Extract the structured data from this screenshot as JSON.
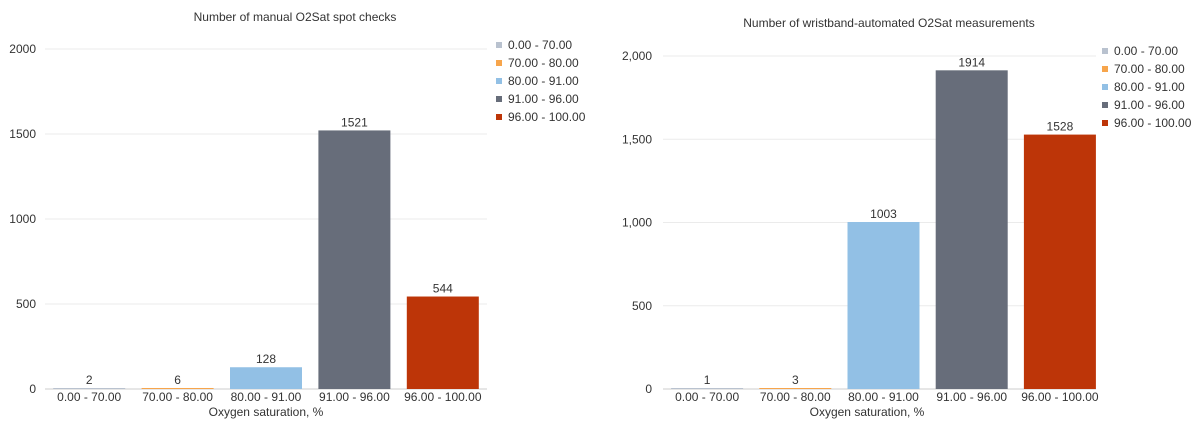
{
  "chart_data": [
    {
      "type": "bar",
      "title": "Number of manual O2Sat spot checks",
      "xlabel": "Oxygen saturation, %",
      "ylabel": "",
      "categories": [
        "0.00 - 70.00",
        "70.00 - 80.00",
        "80.00 - 91.00",
        "91.00 - 96.00",
        "96.00 - 100.00"
      ],
      "values": [
        2,
        6,
        128,
        1521,
        544
      ],
      "colors": [
        "#b9c2cf",
        "#f7a54c",
        "#92c0e5",
        "#676d7a",
        "#bd3508"
      ],
      "ylim": [
        0,
        2000
      ],
      "yticks": [
        0,
        500,
        1000,
        1500,
        2000
      ],
      "ytick_labels": [
        "0",
        "500",
        "1000",
        "1500",
        "2000"
      ],
      "grid": true,
      "legend": {
        "placement": "top-right",
        "entries": [
          "0.00 - 70.00",
          "70.00 - 80.00",
          "80.00 - 91.00",
          "91.00 - 96.00",
          "96.00 - 100.00"
        ]
      }
    },
    {
      "type": "bar",
      "title": "Number of wristband-automated O2Sat measurements",
      "xlabel": "Oxygen saturation, %",
      "ylabel": "",
      "categories": [
        "0.00 - 70.00",
        "70.00 - 80.00",
        "80.00 - 91.00",
        "91.00 - 96.00",
        "96.00 - 100.00"
      ],
      "values": [
        1,
        3,
        1003,
        1914,
        1528
      ],
      "colors": [
        "#b9c2cf",
        "#f7a54c",
        "#92c0e5",
        "#676d7a",
        "#bd3508"
      ],
      "ylim": [
        0,
        2000
      ],
      "yticks": [
        0,
        500,
        1000,
        1500,
        2000
      ],
      "ytick_labels": [
        "0",
        "500",
        "1,000",
        "1,500",
        "2,000"
      ],
      "grid": true,
      "legend": {
        "placement": "top-right",
        "entries": [
          "0.00 - 70.00",
          "70.00 - 80.00",
          "80.00 - 91.00",
          "91.00 - 96.00",
          "96.00 - 100.00"
        ]
      }
    }
  ]
}
